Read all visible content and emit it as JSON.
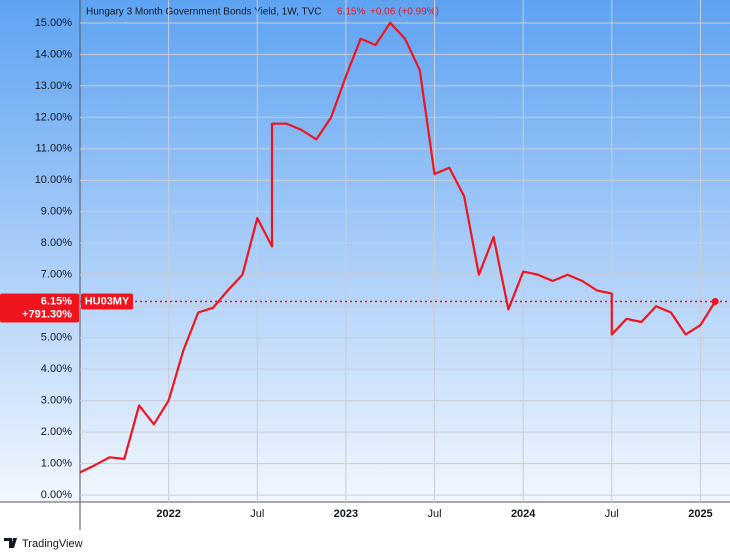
{
  "chart_data": {
    "type": "line",
    "title": "Hungary 3 Month Government Bonds Yield, 1W, TVC",
    "last_value": 6.15,
    "last_value_label": "6.15%",
    "change_label": "+0.06 (+0.99%)",
    "percent_change_label": "+791.30%",
    "symbol": "HU03MY",
    "brand": "TradingView",
    "color": "#f0141e",
    "x": [
      "2021-07",
      "2021-08",
      "2021-09",
      "2021-10",
      "2021-11",
      "2021-12",
      "2022-01",
      "2022-02",
      "2022-03",
      "2022-04",
      "2022-05",
      "2022-06",
      "2022-07",
      "2022-08",
      "2022-08",
      "2022-09",
      "2022-10",
      "2022-11",
      "2022-12",
      "2023-01",
      "2023-02",
      "2023-03",
      "2023-04",
      "2023-05",
      "2023-06",
      "2023-07",
      "2023-08",
      "2023-09",
      "2023-10",
      "2023-11",
      "2023-12",
      "2024-01",
      "2024-02",
      "2024-03",
      "2024-04",
      "2024-05",
      "2024-06",
      "2024-07",
      "2024-07",
      "2024-08",
      "2024-09",
      "2024-10",
      "2024-11",
      "2024-12",
      "2025-01",
      "2025-02"
    ],
    "values": [
      0.72,
      0.95,
      1.2,
      1.15,
      2.85,
      2.25,
      3.0,
      4.6,
      5.8,
      5.95,
      6.5,
      7.0,
      8.8,
      7.9,
      11.8,
      11.8,
      11.6,
      11.3,
      12.0,
      13.3,
      14.5,
      14.3,
      15.0,
      14.5,
      13.5,
      10.2,
      10.4,
      9.5,
      7.0,
      8.2,
      5.9,
      7.1,
      7.0,
      6.8,
      7.0,
      6.8,
      6.5,
      6.4,
      5.1,
      5.6,
      5.5,
      6.0,
      5.8,
      5.1,
      5.4,
      6.15
    ],
    "xlim": [
      "2021-07",
      "2025-03"
    ],
    "xticks": [
      {
        "value": "2022-01",
        "label": "2022"
      },
      {
        "value": "2022-07",
        "label": "Jul"
      },
      {
        "value": "2023-01",
        "label": "2023"
      },
      {
        "value": "2023-07",
        "label": "Jul"
      },
      {
        "value": "2024-01",
        "label": "2024"
      },
      {
        "value": "2024-07",
        "label": "Jul"
      },
      {
        "value": "2025-01",
        "label": "2025"
      }
    ],
    "ylim": [
      -0.22,
      15.57
    ],
    "yticks": [
      {
        "value": 0,
        "label": "0.00%"
      },
      {
        "value": 1,
        "label": "1.00%"
      },
      {
        "value": 2,
        "label": "2.00%"
      },
      {
        "value": 3,
        "label": "3.00%"
      },
      {
        "value": 4,
        "label": "4.00%"
      },
      {
        "value": 5,
        "label": "5.00%"
      },
      {
        "value": 6,
        "label": "6.00%"
      },
      {
        "value": 7,
        "label": "7.00%"
      },
      {
        "value": 8,
        "label": "8.00%"
      },
      {
        "value": 9,
        "label": "9.00%"
      },
      {
        "value": 10,
        "label": "10.00%"
      },
      {
        "value": 11,
        "label": "11.00%"
      },
      {
        "value": 12,
        "label": "12.00%"
      },
      {
        "value": 13,
        "label": "13.00%"
      },
      {
        "value": 14,
        "label": "14.00%"
      },
      {
        "value": 15,
        "label": "15.00%"
      }
    ],
    "grid": true
  }
}
